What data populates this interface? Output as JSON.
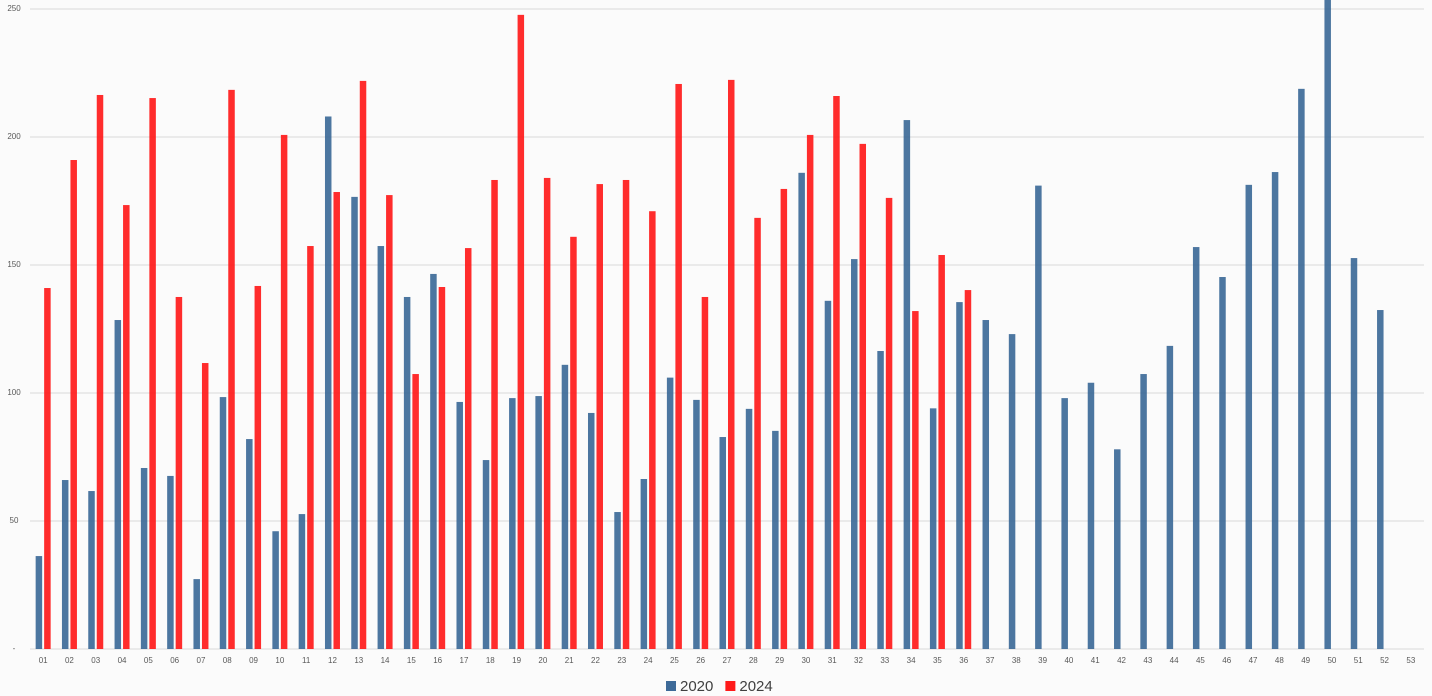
{
  "chart_data": {
    "type": "bar",
    "categories": [
      "01",
      "02",
      "03",
      "04",
      "05",
      "06",
      "07",
      "08",
      "09",
      "10",
      "11",
      "12",
      "13",
      "14",
      "15",
      "16",
      "17",
      "18",
      "19",
      "20",
      "21",
      "22",
      "23",
      "24",
      "25",
      "26",
      "27",
      "28",
      "29",
      "30",
      "31",
      "32",
      "33",
      "34",
      "35",
      "36",
      "37",
      "38",
      "39",
      "40",
      "41",
      "42",
      "43",
      "44",
      "45",
      "46",
      "47",
      "48",
      "49",
      "50",
      "51",
      "52",
      "53"
    ],
    "series": [
      {
        "name": "2020",
        "color": "#3d6a98",
        "values": [
          36.3,
          66,
          61.7,
          128.5,
          70.7,
          67.6,
          27.3,
          98.4,
          82,
          46,
          52.7,
          208,
          176.6,
          157.4,
          137.5,
          146.5,
          96.5,
          73.8,
          98,
          98.8,
          111,
          92.2,
          53.5,
          66.4,
          106,
          97.3,
          82.8,
          93.8,
          85.2,
          186,
          136,
          152.3,
          116.4,
          206.6,
          94,
          135.5,
          128.5,
          123,
          181,
          98,
          104,
          78,
          107.4,
          118.4,
          157,
          145.3,
          181.3,
          186.3,
          218.8,
          260,
          152.7,
          132.4,
          null
        ]
      },
      {
        "name": "2024",
        "color": "#ff1a1a",
        "values": [
          141,
          191,
          216.4,
          173.4,
          215.2,
          137.5,
          111.7,
          218.4,
          141.8,
          200.8,
          157.4,
          178.5,
          221.9,
          177.3,
          107.4,
          141.4,
          156.6,
          183.2,
          247.7,
          184,
          161,
          181.6,
          183.2,
          171,
          220.7,
          137.5,
          222.3,
          168.4,
          179.7,
          200.8,
          216,
          197.3,
          176.2,
          132,
          153.9,
          140.2,
          null,
          null,
          null,
          null,
          null,
          null,
          null,
          null,
          null,
          null,
          null,
          null,
          null,
          null,
          null,
          null,
          null
        ]
      }
    ],
    "ylim": [
      0,
      253.5
    ],
    "yticks": [
      {
        "value": 0,
        "label": "-"
      },
      50,
      100,
      150,
      200,
      250
    ],
    "grid": true
  }
}
